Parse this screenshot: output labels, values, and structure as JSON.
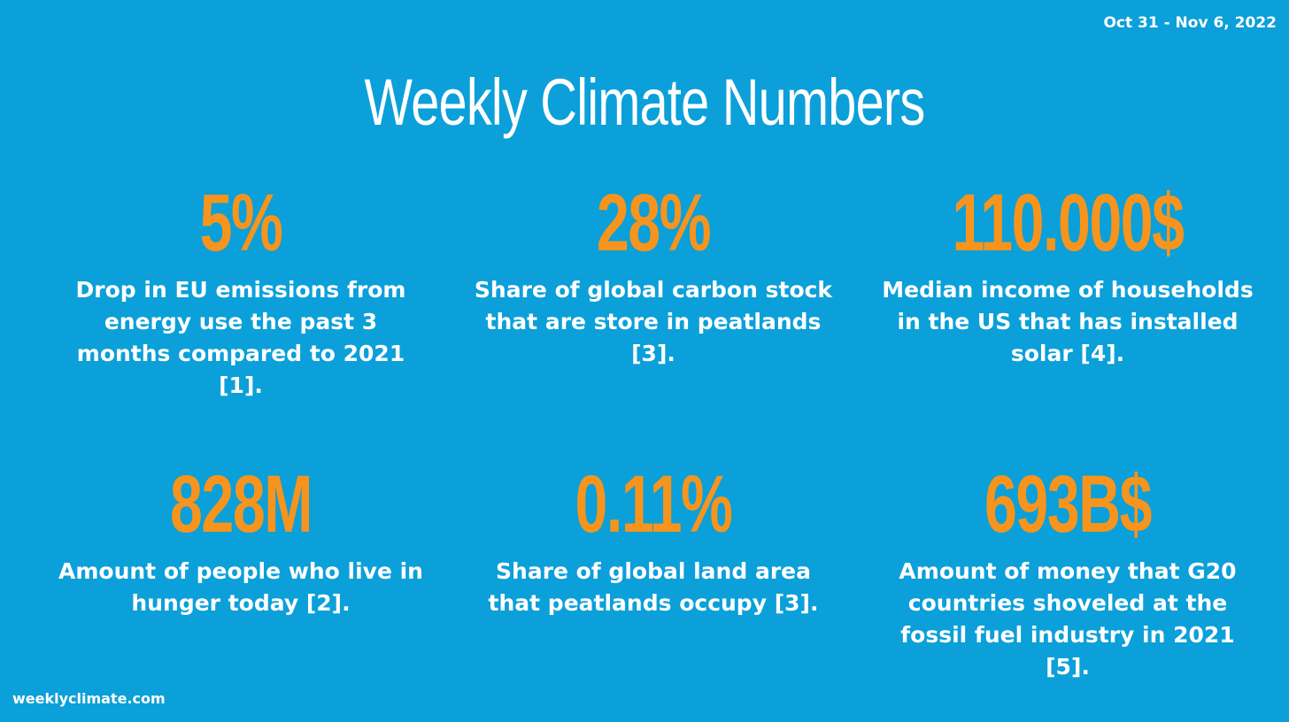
{
  "header": {
    "date_range": "Oct 31 - Nov 6, 2022",
    "title": "Weekly Climate Numbers"
  },
  "stats": [
    {
      "value": "5%",
      "description": "Drop in EU emissions from energy use the past 3 months compared to 2021 [1]."
    },
    {
      "value": "28%",
      "description": "Share of global carbon stock that are store in peatlands [3]."
    },
    {
      "value": "110.000$",
      "description": "Median income of households in the US that has installed solar [4]."
    },
    {
      "value": "828M",
      "description": "Amount of people who live in hunger today [2]."
    },
    {
      "value": "0.11%",
      "description": "Share of global land area that peatlands occupy [3]."
    },
    {
      "value": "693B$",
      "description": "Amount of money that G20 countries shoveled at the fossil fuel industry in 2021 [5]."
    }
  ],
  "footer": {
    "site": "weeklyclimate.com"
  },
  "colors": {
    "background": "#0ba0d9",
    "accent": "#f7941d",
    "text": "#ffffff"
  }
}
